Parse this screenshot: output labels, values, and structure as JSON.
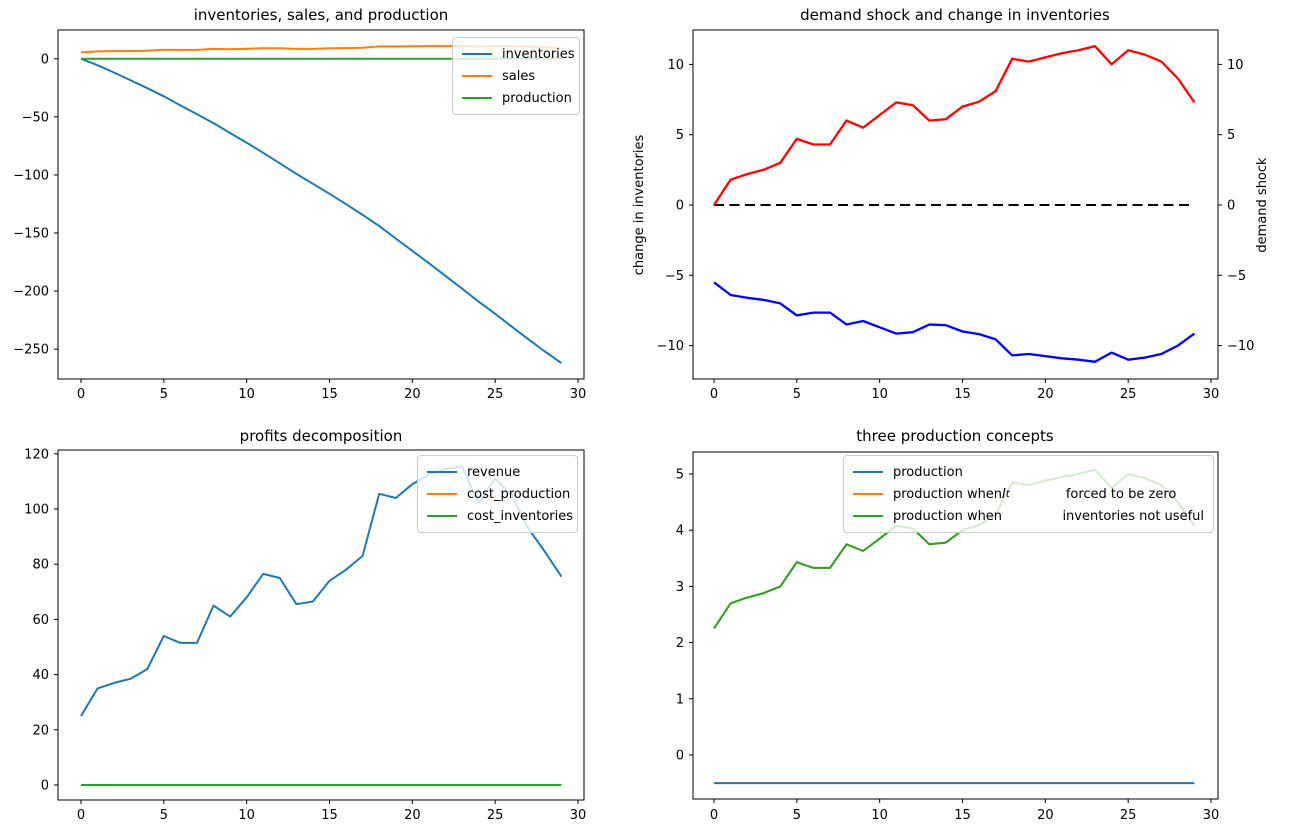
{
  "figure": {
    "background": "#ffffff"
  },
  "chart_data": [
    {
      "id": "tl",
      "type": "line",
      "title": "inventories, sales, and production",
      "x": [
        0,
        1,
        2,
        3,
        4,
        5,
        6,
        7,
        8,
        9,
        10,
        11,
        12,
        13,
        14,
        15,
        16,
        17,
        18,
        19,
        20,
        21,
        22,
        23,
        24,
        25,
        26,
        27,
        28,
        29
      ],
      "x_ticks": [
        0,
        5,
        10,
        15,
        20,
        25,
        30
      ],
      "y_ticks": [
        0,
        -50,
        -100,
        -150,
        -200,
        -250
      ],
      "xlim": [
        -1.45,
        30.45
      ],
      "ylim": [
        -276,
        25
      ],
      "grid": false,
      "legend": {
        "position": "upper right",
        "entries": [
          {
            "color": "#1f77b4",
            "parts": [
              {
                "t": "inventories"
              }
            ]
          },
          {
            "color": "#ff7f0e",
            "parts": [
              {
                "t": "sales"
              }
            ]
          },
          {
            "color": "#2ca02c",
            "parts": [
              {
                "t": "production"
              }
            ]
          }
        ]
      },
      "series": [
        {
          "name": "inventories",
          "color": "#1f77b4",
          "values": [
            0,
            -5.5,
            -11.9,
            -18.5,
            -25.3,
            -32.3,
            -40.1,
            -47.8,
            -55.4,
            -63.9,
            -72.2,
            -80.9,
            -90.0,
            -99.1,
            -107.6,
            -116.2,
            -125.2,
            -134.4,
            -144.0,
            -154.7,
            -165.3,
            -176.0,
            -186.9,
            -197.9,
            -209.1,
            -219.6,
            -230.6,
            -241.4,
            -252.0,
            -262.0
          ]
        },
        {
          "name": "sales",
          "color": "#ff7f0e",
          "values": [
            5.5,
            6.4,
            6.6,
            6.75,
            7.0,
            7.85,
            7.65,
            7.65,
            8.5,
            8.25,
            8.7,
            9.15,
            9.05,
            8.5,
            8.55,
            9.0,
            9.18,
            9.55,
            10.7,
            10.6,
            10.75,
            10.9,
            11.0,
            11.15,
            10.5,
            11.0,
            10.85,
            10.6,
            10.0,
            9.15
          ]
        },
        {
          "name": "production",
          "color": "#2ca02c",
          "values": [
            0,
            0,
            0,
            0,
            0,
            0,
            0,
            0,
            0,
            0,
            0,
            0,
            0,
            0,
            0,
            0,
            0,
            0,
            0,
            0,
            0,
            0,
            0,
            0,
            0,
            0,
            0,
            0,
            0,
            0
          ]
        }
      ]
    },
    {
      "id": "tr",
      "type": "line",
      "title": "demand shock and change in inventories",
      "ylabel_left": {
        "text": "change in inventories",
        "color": "#0000ff"
      },
      "ylabel_right": {
        "text": "demand shock",
        "color": "#ff0000"
      },
      "x": [
        0,
        1,
        2,
        3,
        4,
        5,
        6,
        7,
        8,
        9,
        10,
        11,
        12,
        13,
        14,
        15,
        16,
        17,
        18,
        19,
        20,
        21,
        22,
        23,
        24,
        25,
        26,
        27,
        28,
        29
      ],
      "x_ticks": [
        0,
        5,
        10,
        15,
        20,
        25,
        30
      ],
      "y_ticks": [
        10,
        5,
        0,
        -5,
        -10
      ],
      "y_ticks_right": [
        10,
        5,
        0,
        -5,
        -10
      ],
      "xlim": [
        -1.45,
        30.45
      ],
      "ylim": [
        -12.4,
        12.4
      ],
      "grid": false,
      "series": [
        {
          "name": "zero line",
          "color": "#000000",
          "dash": "10 5.5",
          "values": [
            0,
            0,
            0,
            0,
            0,
            0,
            0,
            0,
            0,
            0,
            0,
            0,
            0,
            0,
            0,
            0,
            0,
            0,
            0,
            0,
            0,
            0,
            0,
            0,
            0,
            0,
            0,
            0,
            0,
            0
          ]
        },
        {
          "name": "change in inventories",
          "color": "#0000ff",
          "width": 2.3,
          "values": [
            -5.5,
            -6.4,
            -6.6,
            -6.75,
            -7.0,
            -7.85,
            -7.65,
            -7.65,
            -8.5,
            -8.25,
            -8.7,
            -9.15,
            -9.05,
            -8.5,
            -8.55,
            -9.0,
            -9.18,
            -9.55,
            -10.7,
            -10.6,
            -10.75,
            -10.9,
            -11.0,
            -11.15,
            -10.5,
            -11.0,
            -10.85,
            -10.6,
            -10.0,
            -9.15
          ]
        },
        {
          "name": "demand shock",
          "color": "#ff0000",
          "width": 2.3,
          "values": [
            0,
            1.8,
            2.2,
            2.5,
            3.0,
            4.7,
            4.3,
            4.3,
            6.0,
            5.5,
            6.4,
            7.3,
            7.1,
            6.0,
            6.1,
            7.0,
            7.35,
            8.1,
            10.4,
            10.2,
            10.5,
            10.8,
            11.0,
            11.3,
            10.0,
            11.0,
            10.7,
            10.2,
            9.0,
            7.3
          ]
        }
      ]
    },
    {
      "id": "bl",
      "type": "line",
      "title": "profits decomposition",
      "x": [
        0,
        1,
        2,
        3,
        4,
        5,
        6,
        7,
        8,
        9,
        10,
        11,
        12,
        13,
        14,
        15,
        16,
        17,
        18,
        19,
        20,
        21,
        22,
        23,
        24,
        25,
        26,
        27,
        28,
        29
      ],
      "x_ticks": [
        0,
        5,
        10,
        15,
        20,
        25,
        30
      ],
      "y_ticks": [
        0,
        20,
        40,
        60,
        80,
        100,
        120
      ],
      "xlim": [
        -1.45,
        30.45
      ],
      "ylim": [
        -5.8,
        121.3
      ],
      "grid": false,
      "legend": {
        "position": "upper right",
        "entries": [
          {
            "color": "#1f77b4",
            "parts": [
              {
                "t": "revenue"
              }
            ]
          },
          {
            "color": "#ff7f0e",
            "parts": [
              {
                "t": "cost_production"
              }
            ]
          },
          {
            "color": "#2ca02c",
            "parts": [
              {
                "t": "cost_inventories"
              }
            ]
          }
        ]
      },
      "series": [
        {
          "name": "revenue",
          "color": "#1f77b4",
          "values": [
            25,
            35,
            37,
            38.5,
            42,
            54,
            51.5,
            51.5,
            65,
            61,
            68,
            76.5,
            75,
            65.5,
            66.5,
            74,
            78,
            83,
            105.5,
            104,
            109,
            112.5,
            114.5,
            115.5,
            102,
            111,
            105,
            93,
            84.5,
            75.5
          ]
        },
        {
          "name": "cost_production",
          "color": "#ff7f0e",
          "values": [
            0,
            0,
            0,
            0,
            0,
            0,
            0,
            0,
            0,
            0,
            0,
            0,
            0,
            0,
            0,
            0,
            0,
            0,
            0,
            0,
            0,
            0,
            0,
            0,
            0,
            0,
            0,
            0,
            0,
            0
          ]
        },
        {
          "name": "cost_inventories",
          "color": "#2ca02c",
          "values": [
            0,
            0,
            0,
            0,
            0,
            0,
            0,
            0,
            0,
            0,
            0,
            0,
            0,
            0,
            0,
            0,
            0,
            0,
            0,
            0,
            0,
            0,
            0,
            0,
            0,
            0,
            0,
            0,
            0,
            0
          ]
        }
      ]
    },
    {
      "id": "br",
      "type": "line",
      "title": "three production concepts",
      "x": [
        0,
        1,
        2,
        3,
        4,
        5,
        6,
        7,
        8,
        9,
        10,
        11,
        12,
        13,
        14,
        15,
        16,
        17,
        18,
        19,
        20,
        21,
        22,
        23,
        24,
        25,
        26,
        27,
        28,
        29
      ],
      "x_ticks": [
        0,
        5,
        10,
        15,
        20,
        25,
        30
      ],
      "y_ticks": [
        0,
        1,
        2,
        3,
        4,
        5
      ],
      "xlim": [
        -1.45,
        30.45
      ],
      "ylim": [
        -0.78,
        5.35
      ],
      "grid": false,
      "legend": {
        "position": "upper center",
        "entries": [
          {
            "color": "#1f77b4",
            "parts": [
              {
                "t": "production"
              }
            ]
          },
          {
            "color": "#ff7f0e",
            "parts": [
              {
                "t": "production when "
              },
              {
                "math": "I",
                "sub": "t"
              },
              {
                "gap": 56
              },
              {
                "t": "forced to be zero"
              }
            ]
          },
          {
            "color": "#2ca02c",
            "parts": [
              {
                "t": "production when"
              },
              {
                "gap": 62
              },
              {
                "t": "inventories not useful"
              }
            ]
          }
        ]
      },
      "series": [
        {
          "name": "production",
          "color": "#1f77b4",
          "values": [
            -0.5,
            -0.5,
            -0.5,
            -0.5,
            -0.5,
            -0.5,
            -0.5,
            -0.5,
            -0.5,
            -0.5,
            -0.5,
            -0.5,
            -0.5,
            -0.5,
            -0.5,
            -0.5,
            -0.5,
            -0.5,
            -0.5,
            -0.5,
            -0.5,
            -0.5,
            -0.5,
            -0.5,
            -0.5,
            -0.5,
            -0.5,
            -0.5,
            -0.5,
            -0.5
          ]
        },
        {
          "name": "production when I_t forced to be zero",
          "color": "#ff7f0e",
          "values": [
            2.25,
            2.7,
            2.8,
            2.88,
            3.0,
            3.43,
            3.33,
            3.33,
            3.75,
            3.63,
            3.85,
            4.08,
            4.03,
            3.75,
            3.78,
            4.0,
            4.09,
            4.28,
            4.85,
            4.8,
            4.88,
            4.95,
            5.0,
            5.08,
            4.75,
            5.0,
            4.93,
            4.8,
            4.5,
            4.08
          ]
        },
        {
          "name": "production when inventories not useful",
          "color": "#2ca02c",
          "values": [
            2.25,
            2.7,
            2.8,
            2.88,
            3.0,
            3.43,
            3.33,
            3.33,
            3.75,
            3.63,
            3.85,
            4.08,
            4.03,
            3.75,
            3.78,
            4.0,
            4.09,
            4.28,
            4.85,
            4.8,
            4.88,
            4.95,
            5.0,
            5.08,
            4.75,
            5.0,
            4.93,
            4.8,
            4.5,
            4.08
          ]
        }
      ]
    }
  ]
}
